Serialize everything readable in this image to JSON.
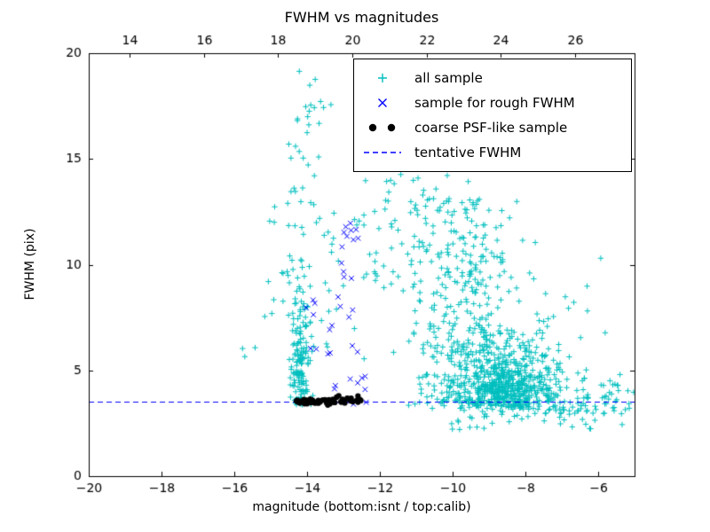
{
  "chart_data": {
    "type": "scatter",
    "title": "FWHM vs magnitudes",
    "xlabel": "magnitude (bottom:isnt / top:calib)",
    "ylabel": "FWHM (pix)",
    "xlim": [
      -20,
      -5
    ],
    "ylim": [
      0,
      20
    ],
    "x_ticks": [
      -20,
      -18,
      -16,
      -14,
      -12,
      -10,
      -8,
      -6
    ],
    "y_ticks": [
      0,
      5,
      10,
      15,
      20
    ],
    "top_axis": {
      "xlim": [
        12.9,
        27.6
      ],
      "ticks": [
        14,
        16,
        18,
        20,
        22,
        24,
        26
      ]
    },
    "grid": false,
    "legend_position": "upper right",
    "tentative_fwhm": 3.5,
    "series": [
      {
        "name": "all sample",
        "marker": "plus",
        "color": "#00bfbf",
        "clusters": [
          {
            "n": 150,
            "x": {
              "t": "g",
              "a": -14.18,
              "b": 0.13,
              "min": -14.6,
              "max": -13.75
            },
            "y": {
              "t": "hg",
              "a": 3.3,
              "b": 3.3,
              "max": 18.5
            }
          },
          {
            "n": 30,
            "x": {
              "t": "g",
              "a": -14.1,
              "b": 0.35,
              "min": -14.9,
              "max": -13.3
            },
            "y": {
              "t": "u",
              "a": 12,
              "b": 19.8
            }
          },
          {
            "n": 55,
            "x": {
              "t": "u",
              "a": -15.1,
              "b": -12.3
            },
            "y": {
              "t": "u",
              "a": 5.5,
              "b": 13
            }
          },
          {
            "n": 45,
            "x": {
              "t": "u",
              "a": -12.4,
              "b": -10.6
            },
            "y": {
              "t": "u",
              "a": 8.8,
              "b": 15.2
            }
          },
          {
            "n": 500,
            "x": {
              "t": "g",
              "a": -8.9,
              "b": 0.9,
              "min": -11.5,
              "max": -6.2
            },
            "y": {
              "t": "hg",
              "a": 3.2,
              "b": 1.8,
              "max": 9
            }
          },
          {
            "n": 250,
            "x": {
              "t": "g",
              "a": -9.6,
              "b": 0.85,
              "min": -11.8,
              "max": -7.2
            },
            "y": {
              "t": "u",
              "a": 5.5,
              "b": 13.2
            }
          },
          {
            "n": 220,
            "x": {
              "t": "g",
              "a": -8.3,
              "b": 0.5,
              "min": -9.3,
              "max": -7.0
            },
            "y": {
              "t": "g",
              "a": 4.2,
              "b": 0.7,
              "min": 2.8,
              "max": 6.5
            }
          },
          {
            "n": 70,
            "x": {
              "t": "u",
              "a": -7.4,
              "b": -5.0
            },
            "y": {
              "t": "hg",
              "a": 2.9,
              "b": 1.1,
              "max": 7
            }
          },
          {
            "n": 8,
            "x": {
              "t": "u",
              "a": -7.6,
              "b": -5.6
            },
            "y": {
              "t": "u",
              "a": 6,
              "b": 10.5
            }
          },
          {
            "n": 10,
            "x": {
              "t": "u",
              "a": -11.2,
              "b": -9.0
            },
            "y": {
              "t": "u",
              "a": 12.5,
              "b": 15.5
            }
          },
          {
            "n": 40,
            "x": {
              "t": "u",
              "a": -10.5,
              "b": -5.2
            },
            "y": {
              "t": "u",
              "a": 2.2,
              "b": 3.2
            }
          },
          {
            "n": 4,
            "x": {
              "t": "u",
              "a": -15.8,
              "b": -15.0
            },
            "y": {
              "t": "u",
              "a": 4,
              "b": 9
            }
          }
        ]
      },
      {
        "name": "sample for rough FWHM",
        "marker": "x",
        "color": "#0000ff",
        "clusters": [
          {
            "n": 13,
            "x": {
              "t": "u",
              "a": -13.15,
              "b": -12.5
            },
            "y": {
              "t": "u",
              "a": 9.3,
              "b": 12.1
            }
          },
          {
            "n": 16,
            "x": {
              "t": "u",
              "a": -14.25,
              "b": -12.6
            },
            "y": {
              "t": "u",
              "a": 5.7,
              "b": 8.7
            }
          },
          {
            "n": 12,
            "x": {
              "t": "u",
              "a": -13.3,
              "b": -12.35
            },
            "y": {
              "t": "u",
              "a": 3.4,
              "b": 4.9
            }
          }
        ]
      },
      {
        "name": "coarse PSF-like sample",
        "marker": "dot",
        "color": "#000000",
        "clusters": [
          {
            "n": 45,
            "x": {
              "t": "u",
              "a": -14.3,
              "b": -13.2
            },
            "y": {
              "t": "g",
              "a": 3.55,
              "b": 0.08
            }
          },
          {
            "n": 18,
            "x": {
              "t": "u",
              "a": -13.2,
              "b": -12.5
            },
            "y": {
              "t": "g",
              "a": 3.6,
              "b": 0.1
            }
          }
        ]
      },
      {
        "name": "tentative FWHM",
        "marker": "hline",
        "color": "#0000ff",
        "y": 3.5,
        "dash": [
          6,
          4
        ]
      }
    ]
  }
}
